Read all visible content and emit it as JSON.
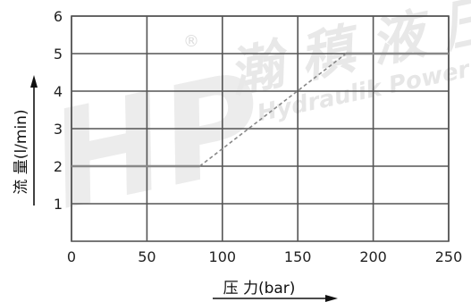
{
  "chart_data": {
    "type": "line",
    "xlabel": "压 力(bar)",
    "ylabel": "流 量(l/min)",
    "xlim": [
      0,
      250
    ],
    "ylim": [
      0,
      6
    ],
    "x_ticks": [
      0,
      50,
      100,
      150,
      200,
      250
    ],
    "y_ticks": [
      1,
      2,
      3,
      4,
      5,
      6
    ],
    "grid": true,
    "series": [
      {
        "style": "solid",
        "color": "#888888",
        "x": [
          0,
          85
        ],
        "y": [
          2,
          2
        ]
      },
      {
        "style": "dashed",
        "color": "#888888",
        "x": [
          85,
          182
        ],
        "y": [
          2,
          5
        ]
      },
      {
        "style": "solid",
        "color": "#888888",
        "x": [
          182,
          250
        ],
        "y": [
          5,
          5
        ]
      }
    ]
  },
  "colors": {
    "grid": "#555555",
    "series": "#888888",
    "watermark": "#e6e6e6"
  },
  "watermark": {
    "logo_text": "HP",
    "registered": "®",
    "brand_cn": "瀚 稹 液 压",
    "brand_en": "Hydraulik Power"
  }
}
